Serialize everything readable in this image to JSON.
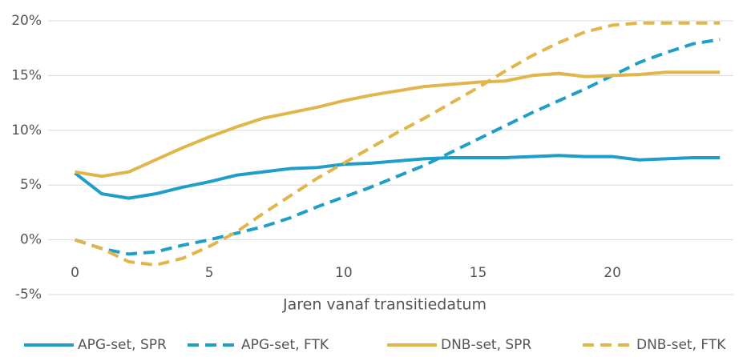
{
  "chart_data": {
    "type": "line",
    "x_label": "Jaren vanaf transitiedatum",
    "x": [
      0,
      1,
      2,
      3,
      4,
      5,
      6,
      7,
      8,
      9,
      10,
      11,
      12,
      13,
      14,
      15,
      16,
      17,
      18,
      19,
      20,
      21,
      22,
      23,
      24
    ],
    "xlim": [
      -1,
      24.5
    ],
    "xticks": [
      0,
      5,
      10,
      15,
      20
    ],
    "ylim": [
      -5,
      20
    ],
    "yticks": [
      {
        "value": -5,
        "label": "-5%"
      },
      {
        "value": 0,
        "label": "0%"
      },
      {
        "value": 5,
        "label": "5%"
      },
      {
        "value": 10,
        "label": "10%"
      },
      {
        "value": 15,
        "label": "15%"
      },
      {
        "value": 20,
        "label": "20%"
      }
    ],
    "grid": true,
    "legend": "bottom",
    "series": [
      {
        "name": "APG-set, SPR",
        "color": "#1e9ec8",
        "dashed": false,
        "values": [
          6.1,
          4.2,
          3.8,
          4.2,
          4.8,
          5.3,
          5.9,
          6.2,
          6.5,
          6.6,
          6.9,
          7.0,
          7.2,
          7.4,
          7.5,
          7.5,
          7.5,
          7.6,
          7.7,
          7.6,
          7.6,
          7.3,
          7.4,
          7.5,
          7.5
        ]
      },
      {
        "name": "APG-set, FTK",
        "color": "#1e9ec8",
        "dashed": true,
        "values": [
          0,
          -0.8,
          -1.3,
          -1.1,
          -0.5,
          0.0,
          0.6,
          1.2,
          2.0,
          3.0,
          3.9,
          4.8,
          5.8,
          6.8,
          8.0,
          9.2,
          10.4,
          11.6,
          12.7,
          13.8,
          15.0,
          16.2,
          17.1,
          17.9,
          18.3
        ]
      },
      {
        "name": "DNB-set, SPR",
        "color": "#e2b54b",
        "dashed": false,
        "values": [
          6.2,
          5.8,
          6.2,
          7.3,
          8.4,
          9.4,
          10.3,
          11.1,
          11.6,
          12.1,
          12.7,
          13.2,
          13.6,
          14.0,
          14.2,
          14.4,
          14.5,
          15.0,
          15.2,
          14.9,
          15.0,
          15.1,
          15.3,
          15.3,
          15.3
        ]
      },
      {
        "name": "DNB-set, FTK",
        "color": "#e2b54b",
        "dashed": true,
        "values": [
          0,
          -0.8,
          -2.0,
          -2.3,
          -1.7,
          -0.6,
          0.7,
          2.4,
          4.0,
          5.6,
          7.0,
          8.4,
          9.8,
          11.1,
          12.5,
          13.9,
          15.4,
          16.8,
          18.0,
          19.0,
          19.6,
          19.8,
          19.8,
          19.8,
          19.8
        ]
      }
    ]
  }
}
